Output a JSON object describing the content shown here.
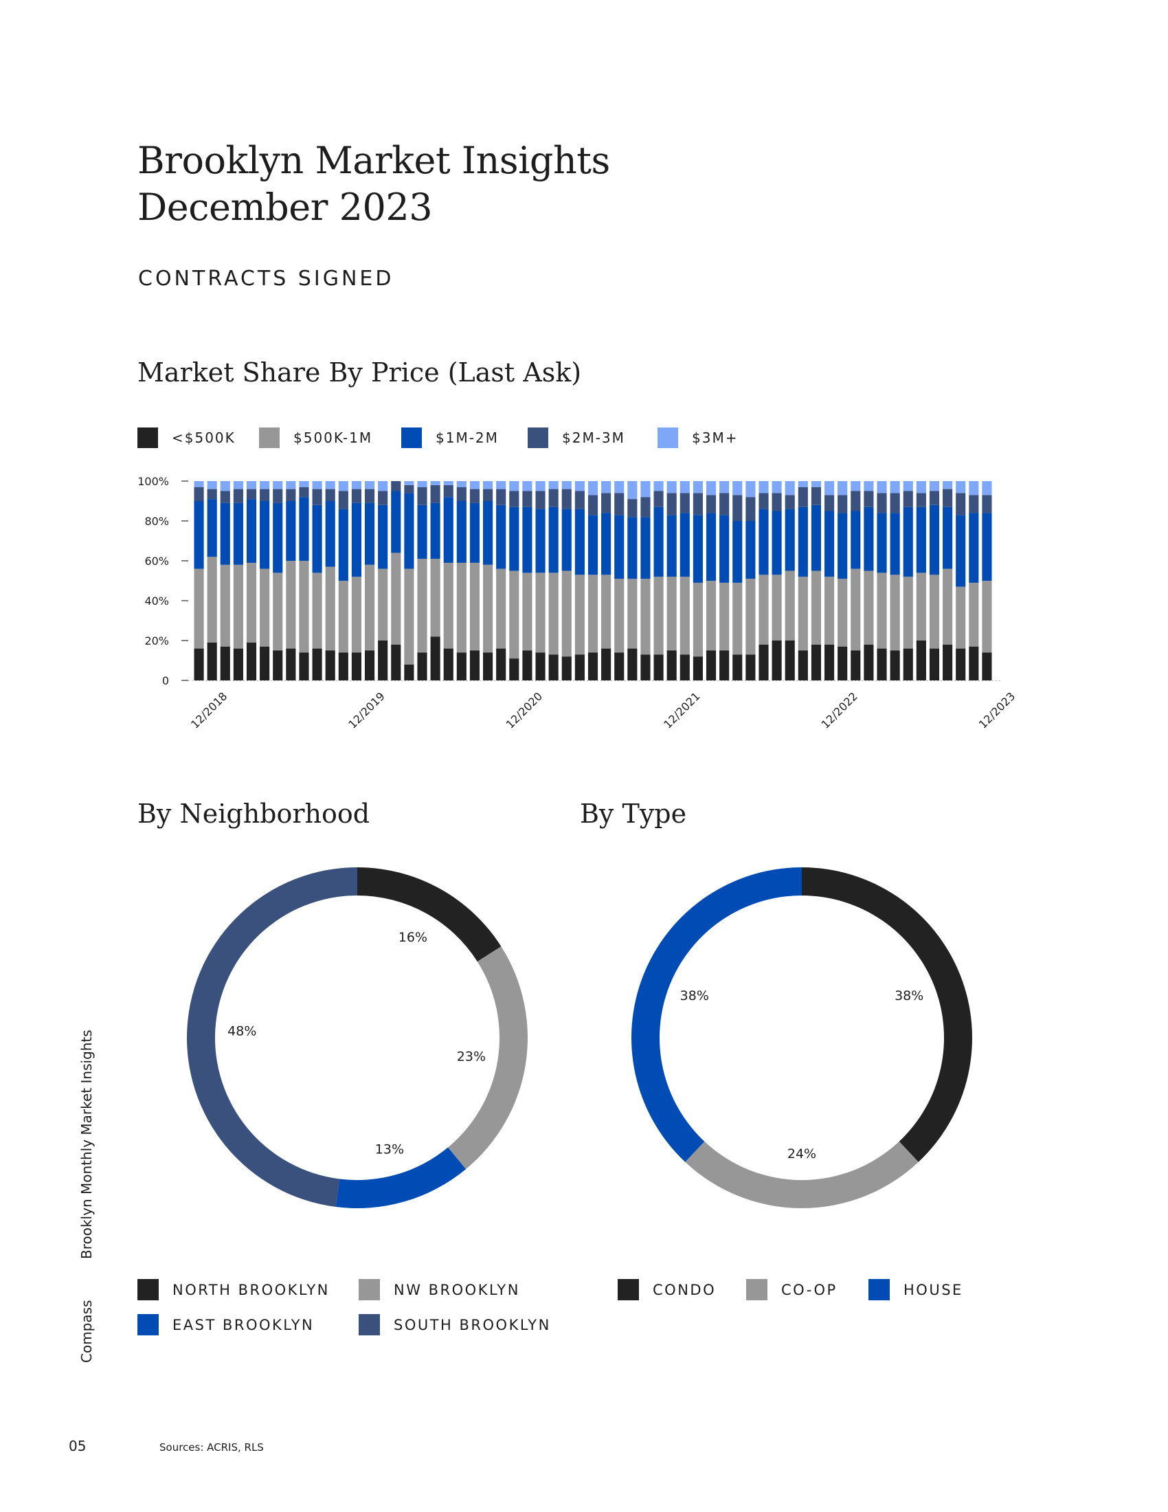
{
  "title": [
    "Brooklyn Market Insights",
    "December 2023"
  ],
  "section_label": "CONTRACTS SIGNED",
  "side_title": "Brooklyn Monthly Market Insights",
  "side_brand": "Compass",
  "page_number": "05",
  "sources": "Sources: ACRIS, RLS",
  "colors": {
    "under_500k": "#222222",
    "500k_1m": "#979797",
    "1m_2m": "#004bb4",
    "2m_3m": "#3b517d",
    "3m_plus": "#7ea8f7",
    "north_brooklyn": "#222222",
    "nw_brooklyn": "#979797",
    "east_brooklyn": "#004bb4",
    "south_brooklyn": "#3b517d",
    "condo": "#222222",
    "coop": "#979797",
    "house": "#004bb4"
  },
  "chart_data": [
    {
      "type": "bar",
      "stacked": true,
      "title": "Market Share By Price (Last Ask)",
      "x_tick_labels": [
        "12/2018",
        "12/2019",
        "12/2020",
        "12/2021",
        "12/2022",
        "12/2023"
      ],
      "y_tick_labels": [
        "0",
        "20%",
        "40%",
        "60%",
        "80%",
        "100%"
      ],
      "ylim": [
        0,
        100
      ],
      "categories": [
        "12/2018",
        "1/2019",
        "2/2019",
        "3/2019",
        "4/2019",
        "5/2019",
        "6/2019",
        "7/2019",
        "8/2019",
        "9/2019",
        "10/2019",
        "11/2019",
        "12/2019",
        "1/2020",
        "2/2020",
        "3/2020",
        "4/2020",
        "5/2020",
        "6/2020",
        "7/2020",
        "8/2020",
        "9/2020",
        "10/2020",
        "11/2020",
        "12/2020",
        "1/2021",
        "2/2021",
        "3/2021",
        "4/2021",
        "5/2021",
        "6/2021",
        "7/2021",
        "8/2021",
        "9/2021",
        "10/2021",
        "11/2021",
        "12/2021",
        "1/2022",
        "2/2022",
        "3/2022",
        "4/2022",
        "5/2022",
        "6/2022",
        "7/2022",
        "8/2022",
        "9/2022",
        "10/2022",
        "11/2022",
        "12/2022",
        "1/2023",
        "2/2023",
        "3/2023",
        "4/2023",
        "5/2023",
        "6/2023",
        "7/2023",
        "8/2023",
        "9/2023",
        "10/2023",
        "11/2023",
        "12/2023"
      ],
      "series": [
        {
          "name": "<$500K",
          "color_key": "under_500k",
          "values": [
            16,
            19,
            17,
            16,
            19,
            17,
            15,
            16,
            14,
            16,
            15,
            14,
            14,
            15,
            20,
            18,
            8,
            14,
            22,
            16,
            14,
            15,
            14,
            16,
            11,
            15,
            14,
            13,
            12,
            13,
            14,
            16,
            14,
            16,
            13,
            13,
            15,
            13,
            12,
            15,
            15,
            13,
            13,
            18,
            20,
            20,
            15,
            18,
            18,
            17,
            15,
            18,
            16,
            15,
            16,
            20,
            16,
            18,
            16,
            17,
            14
          ]
        },
        {
          "name": "$500K-1M",
          "color_key": "500k_1m",
          "values": [
            40,
            43,
            41,
            42,
            40,
            39,
            39,
            44,
            46,
            38,
            42,
            36,
            38,
            43,
            36,
            46,
            48,
            47,
            39,
            43,
            45,
            44,
            44,
            40,
            44,
            39,
            40,
            41,
            43,
            40,
            39,
            37,
            37,
            35,
            38,
            39,
            37,
            39,
            37,
            35,
            34,
            36,
            38,
            35,
            33,
            35,
            37,
            37,
            34,
            34,
            41,
            37,
            38,
            38,
            36,
            34,
            37,
            38,
            31,
            32,
            36
          ]
        },
        {
          "name": "$1M-2M",
          "color_key": "1m_2m",
          "values": [
            34,
            29,
            31,
            31,
            32,
            34,
            35,
            30,
            32,
            34,
            33,
            36,
            37,
            31,
            32,
            31,
            38,
            27,
            28,
            33,
            31,
            30,
            32,
            32,
            32,
            33,
            32,
            33,
            31,
            33,
            30,
            31,
            32,
            31,
            31,
            35,
            31,
            32,
            34,
            34,
            34,
            31,
            29,
            33,
            32,
            31,
            35,
            33,
            33,
            33,
            29,
            32,
            30,
            31,
            35,
            33,
            35,
            31,
            36,
            35,
            34
          ]
        },
        {
          "name": "$2M-3M",
          "color_key": "2m_3m",
          "values": [
            7,
            5,
            6,
            7,
            5,
            6,
            7,
            6,
            5,
            8,
            6,
            9,
            7,
            7,
            7,
            5,
            4,
            9,
            9,
            6,
            7,
            7,
            6,
            8,
            8,
            8,
            9,
            9,
            10,
            9,
            10,
            10,
            11,
            9,
            10,
            8,
            11,
            10,
            11,
            9,
            11,
            13,
            12,
            8,
            9,
            7,
            10,
            9,
            8,
            9,
            10,
            8,
            10,
            10,
            8,
            7,
            7,
            9,
            11,
            9,
            9
          ]
        },
        {
          "name": "$3M+",
          "color_key": "3m_plus",
          "values": [
            3,
            4,
            5,
            4,
            4,
            4,
            4,
            4,
            3,
            4,
            4,
            5,
            4,
            4,
            5,
            0,
            2,
            3,
            2,
            2,
            3,
            4,
            4,
            4,
            5,
            5,
            5,
            4,
            4,
            5,
            7,
            6,
            6,
            9,
            8,
            5,
            6,
            6,
            6,
            7,
            6,
            7,
            8,
            6,
            6,
            7,
            3,
            3,
            7,
            7,
            5,
            5,
            6,
            6,
            5,
            6,
            5,
            4,
            6,
            7,
            7
          ]
        }
      ]
    },
    {
      "type": "pie",
      "donut": true,
      "title": "By Neighborhood",
      "slices": [
        {
          "name": "NORTH BROOKLYN",
          "value": 16,
          "label": "16%",
          "color_key": "north_brooklyn"
        },
        {
          "name": "NW BROOKLYN",
          "value": 23,
          "label": "23%",
          "color_key": "nw_brooklyn"
        },
        {
          "name": "EAST BROOKLYN",
          "value": 13,
          "label": "13%",
          "color_key": "east_brooklyn"
        },
        {
          "name": "SOUTH BROOKLYN",
          "value": 48,
          "label": "48%",
          "color_key": "south_brooklyn"
        }
      ]
    },
    {
      "type": "pie",
      "donut": true,
      "title": "By Type",
      "slices": [
        {
          "name": "CONDO",
          "value": 38,
          "label": "38%",
          "color_key": "condo"
        },
        {
          "name": "CO-OP",
          "value": 24,
          "label": "24%",
          "color_key": "coop"
        },
        {
          "name": "HOUSE",
          "value": 38,
          "label": "38%",
          "color_key": "house"
        }
      ]
    }
  ]
}
